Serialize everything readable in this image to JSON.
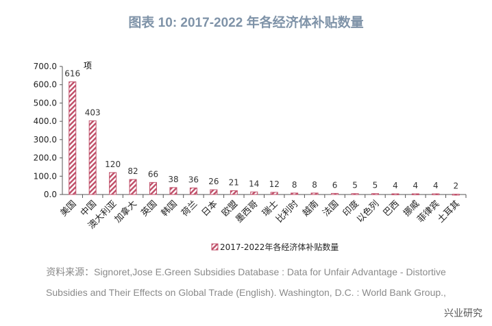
{
  "title": "图表 10:  2017-2022 年各经济体补贴数量",
  "chart_data": {
    "type": "bar",
    "title": "图表 10:  2017-2022 年各经济体补贴数量",
    "categories": [
      "美国",
      "中国",
      "澳大利亚",
      "加拿大",
      "英国",
      "韩国",
      "荷兰",
      "日本",
      "欧盟",
      "墨西哥",
      "瑞士",
      "比利时",
      "越南",
      "法国",
      "印度",
      "以色列",
      "巴西",
      "挪威",
      "菲律宾",
      "土耳其"
    ],
    "series": [
      {
        "name": "2017-2022年各经济体补贴数量",
        "values": [
          616,
          403,
          120,
          82,
          66,
          38,
          36,
          26,
          21,
          14,
          12,
          8,
          8,
          6,
          5,
          5,
          4,
          4,
          4,
          2
        ]
      }
    ],
    "ylabel": "项",
    "ylim": [
      0,
      700
    ],
    "yticks": [
      "0.0",
      "100.0",
      "200.0",
      "300.0",
      "400.0",
      "500.0",
      "600.0",
      "700.0"
    ],
    "grid": false,
    "legend": "bottom",
    "bar_color": "#c0506a"
  },
  "source_line1": "资料来源：Signoret,Jose E.Green Subsidies Database : Data for Unfair Advantage - Distortive",
  "source_line2": "Subsidies and Their Effects on Global Trade (English). Washington, D.C. : World Bank Group.,",
  "brand": "兴业研究"
}
